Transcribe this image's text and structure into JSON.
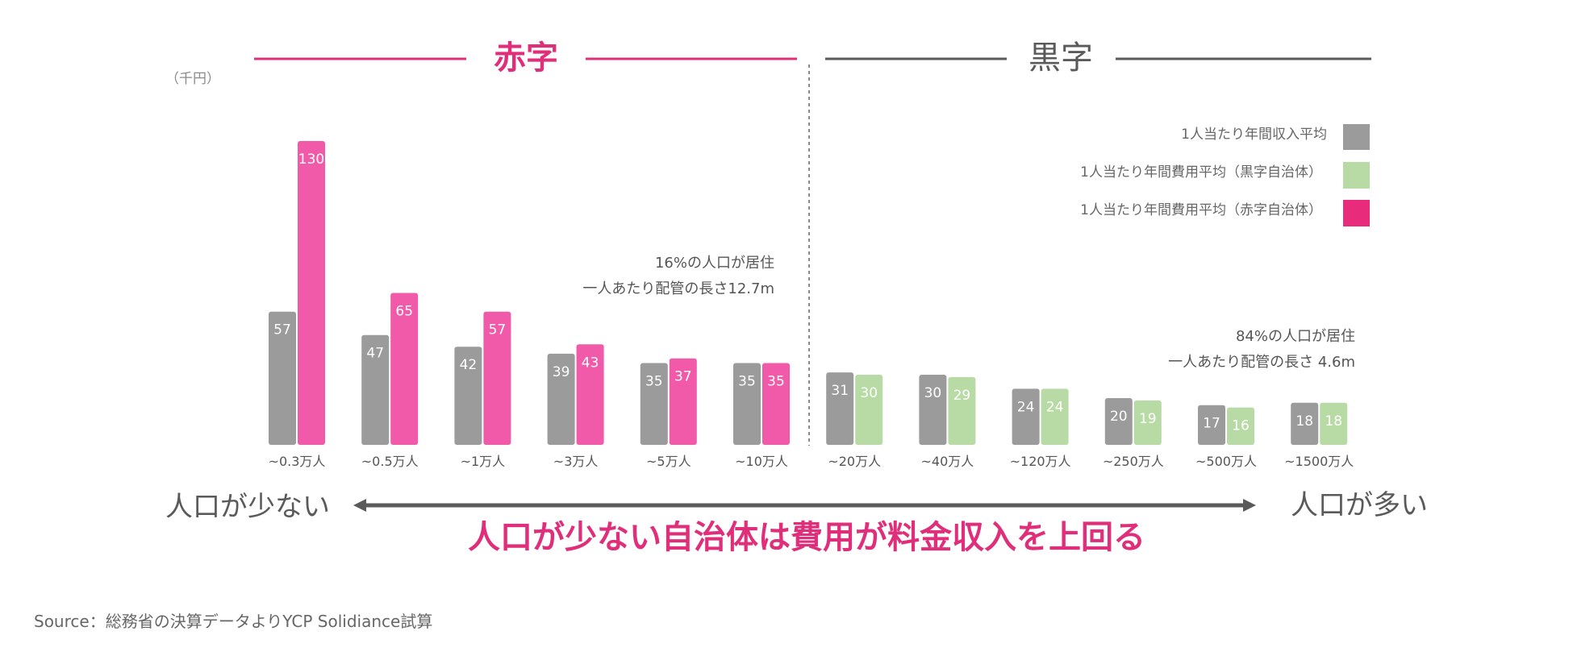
{
  "chart_data": {
    "type": "bar",
    "unit_label": "（千円）",
    "section_labels": {
      "deficit": "赤字",
      "surplus": "黒字"
    },
    "categories": [
      "~0.3万人",
      "~0.5万人",
      "~1万人",
      "~3万人",
      "~5万人",
      "~10万人",
      "~20万人",
      "~40万人",
      "~120万人",
      "~250万人",
      "~500万人",
      "~1500万人"
    ],
    "series": [
      {
        "name": "1人当たり年間収入平均",
        "values": [
          57,
          47,
          42,
          39,
          35,
          35,
          31,
          30,
          24,
          20,
          17,
          18
        ]
      },
      {
        "name": "1人当たり年間費用平均（黒字自治体）/（赤字自治体）",
        "values": [
          130,
          65,
          57,
          43,
          37,
          35,
          30,
          29,
          24,
          19,
          16,
          18
        ]
      }
    ],
    "deficit_group_count": 6,
    "ylim": [
      0,
      130
    ],
    "legend": [
      {
        "label": "1人当たり年間収入平均",
        "color": "#9b9b9b"
      },
      {
        "label": "1人当たり年間費用平均（黒字自治体）",
        "color": "#b8dba6"
      },
      {
        "label": "1人当たり年間費用平均（赤字自治体）",
        "color": "#e92b7c"
      }
    ],
    "annotations": {
      "left_line1": "16%の人口が居住",
      "left_line2": "一人あたり配管の長さ12.7m",
      "right_line1": "84%の人口が居住",
      "right_line2": "一人あたり配管の長さ 4.6m"
    }
  },
  "axis_ends": {
    "left": "人口が少ない",
    "right": "人口が多い"
  },
  "headline": "人口が少ない自治体は費用が料金収入を上回る",
  "source": "Source：総務省の決算データよりYCP Solidiance試算",
  "colors": {
    "income": "#9b9b9b",
    "cost_deficit": "#f05aa8",
    "cost_surplus": "#b8dba6",
    "accent": "#e02f7a",
    "dark": "#5a5a5a"
  }
}
